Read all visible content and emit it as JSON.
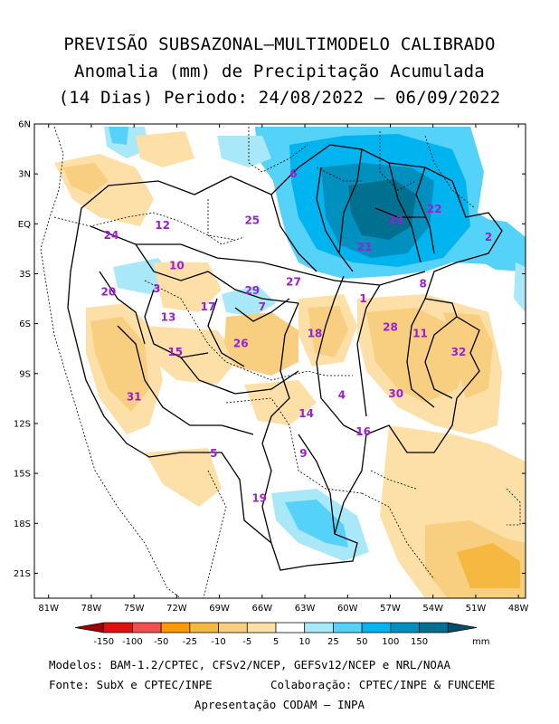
{
  "title": {
    "line1": "PREVISÃO SUBSAZONAL–MULTIMODELO CALIBRADO",
    "line2": "Anomalia (mm) de Precipitação Acumulada",
    "line3": "(14 Dias) Periodo: 24/08/2022 – 06/09/2022"
  },
  "map": {
    "lat_labels": [
      "6N",
      "3N",
      "EQ",
      "3S",
      "6S",
      "9S",
      "12S",
      "15S",
      "18S",
      "21S"
    ],
    "lon_labels": [
      "81W",
      "78W",
      "75W",
      "72W",
      "69W",
      "66W",
      "63W",
      "60W",
      "57W",
      "54W",
      "51W",
      "48W"
    ],
    "lat_range": [
      -22.5,
      6
    ],
    "lon_range": [
      -82,
      -47.5
    ],
    "basin_labels": [
      {
        "id": "6",
        "lon": -63.8,
        "lat": 3.0
      },
      {
        "id": "25",
        "lon": -66.7,
        "lat": 0.2
      },
      {
        "id": "23",
        "lon": -56.6,
        "lat": 0.2
      },
      {
        "id": "22",
        "lon": -53.9,
        "lat": 0.9
      },
      {
        "id": "21",
        "lon": -58.8,
        "lat": -1.4
      },
      {
        "id": "2",
        "lon": -50.1,
        "lat": -0.8
      },
      {
        "id": "12",
        "lon": -73.0,
        "lat": -0.1
      },
      {
        "id": "24",
        "lon": -76.6,
        "lat": -0.7
      },
      {
        "id": "10",
        "lon": -72.0,
        "lat": -2.5
      },
      {
        "id": "3",
        "lon": -73.4,
        "lat": -3.9
      },
      {
        "id": "20",
        "lon": -76.8,
        "lat": -4.1
      },
      {
        "id": "29",
        "lon": -66.7,
        "lat": -4.0
      },
      {
        "id": "27",
        "lon": -63.8,
        "lat": -3.5
      },
      {
        "id": "1",
        "lon": -58.9,
        "lat": -4.5
      },
      {
        "id": "8",
        "lon": -54.7,
        "lat": -3.6
      },
      {
        "id": "17",
        "lon": -69.8,
        "lat": -5.0
      },
      {
        "id": "7",
        "lon": -66.0,
        "lat": -5.0
      },
      {
        "id": "13",
        "lon": -72.6,
        "lat": -5.6
      },
      {
        "id": "28",
        "lon": -57.0,
        "lat": -6.2
      },
      {
        "id": "18",
        "lon": -62.3,
        "lat": -6.6
      },
      {
        "id": "11",
        "lon": -54.9,
        "lat": -6.6
      },
      {
        "id": "26",
        "lon": -67.5,
        "lat": -7.2
      },
      {
        "id": "15",
        "lon": -72.1,
        "lat": -7.7
      },
      {
        "id": "32",
        "lon": -52.2,
        "lat": -7.7
      },
      {
        "id": "30",
        "lon": -56.6,
        "lat": -10.2
      },
      {
        "id": "31",
        "lon": -75.0,
        "lat": -10.4
      },
      {
        "id": "4",
        "lon": -60.4,
        "lat": -10.3
      },
      {
        "id": "14",
        "lon": -62.9,
        "lat": -11.4
      },
      {
        "id": "16",
        "lon": -58.9,
        "lat": -12.5
      },
      {
        "id": "9",
        "lon": -63.1,
        "lat": -13.8
      },
      {
        "id": "5",
        "lon": -69.4,
        "lat": -13.8
      },
      {
        "id": "19",
        "lon": -66.2,
        "lat": -16.5
      }
    ]
  },
  "colorbar": {
    "labels": [
      "-150",
      "-100",
      "-50",
      "-25",
      "-10",
      "-5",
      "5",
      "10",
      "25",
      "50",
      "100",
      "150"
    ],
    "unit": "mm",
    "colors": [
      "#a00000",
      "#e01010",
      "#f25050",
      "#ff9900",
      "#f5b840",
      "#f8cf80",
      "#fde0a8",
      "#ffffff",
      "#a8e8f8",
      "#55d2f8",
      "#00b4f0",
      "#0090c0",
      "#007090",
      "#004f6a"
    ]
  },
  "footer": {
    "line1": "Modelos: BAM-1.2/CPTEC, CFSv2/NCEP, GEFSv12/NCEP e NRL/NOAA",
    "line2a": "Fonte: SubX e CPTEC/INPE",
    "line2b": "Colaboração: CPTEC/INPE & FUNCEME",
    "line3": "Apresentação CODAM – INPA"
  }
}
